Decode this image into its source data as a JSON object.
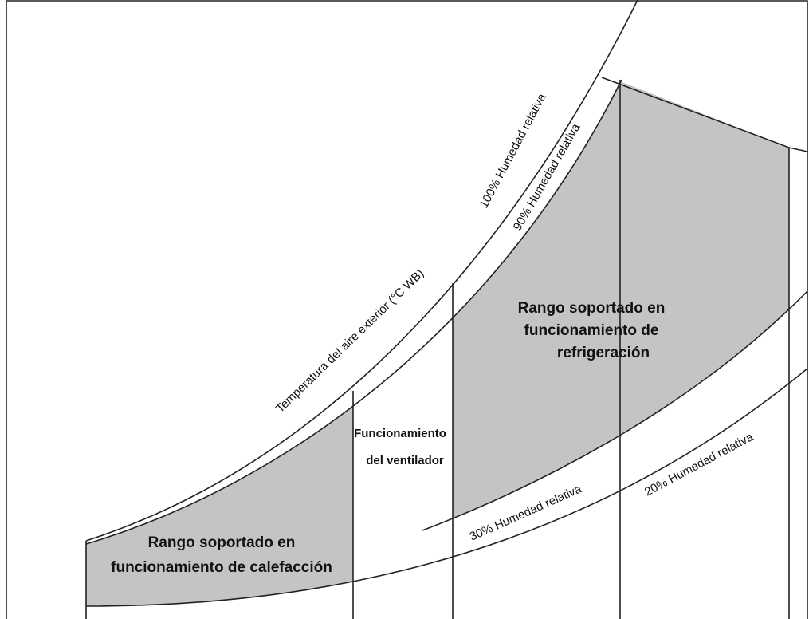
{
  "curves": {
    "rh100": "100% Humedad relativa",
    "rh90": "90% Humedad relativa",
    "rh30": "30% Humedad relativa",
    "rh20": "20% Humedad relativa",
    "axis": "Temperatura del aire exterior (°C WB)"
  },
  "regions": {
    "cooling": [
      "Rango soportado en",
      "funcionamiento de",
      "refrigeración"
    ],
    "fan": [
      "Funcionamiento",
      "del ventilador"
    ],
    "heating": [
      "Rango soportado en",
      "funcionamiento de calefacción"
    ]
  }
}
